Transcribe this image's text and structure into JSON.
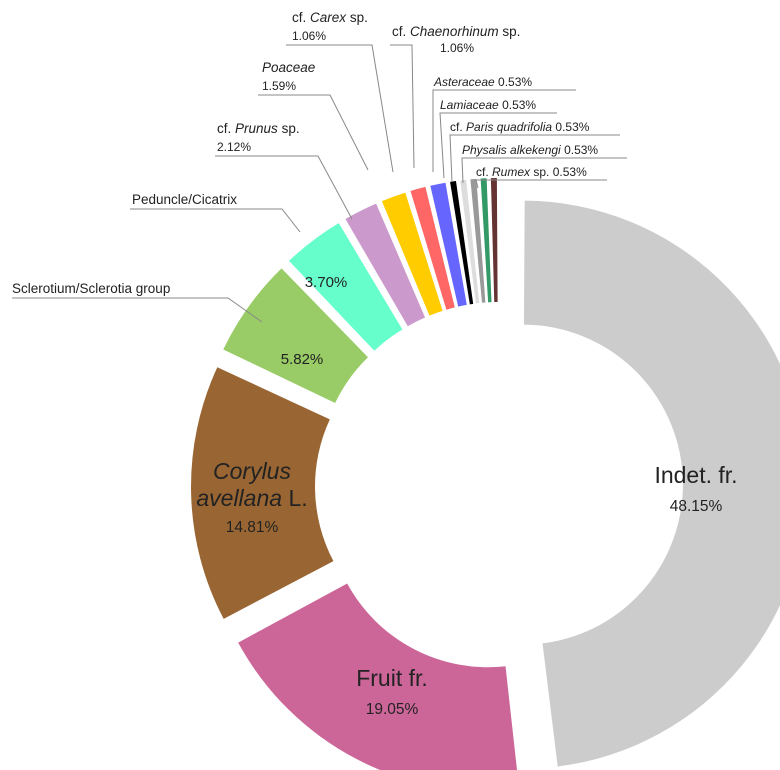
{
  "chart_data": {
    "type": "pie",
    "style": "donut",
    "slices": [
      {
        "label": "Indet. fr.",
        "value": 48.15,
        "display": "48.15%",
        "color": "#cccccc"
      },
      {
        "label": "Fruit fr.",
        "value": 19.05,
        "display": "19.05%",
        "color": "#cc6699"
      },
      {
        "label_parts": [
          "Corylus",
          "avellana",
          "L."
        ],
        "value": 14.81,
        "display": "14.81%",
        "color": "#996633"
      },
      {
        "label": "Sclerotium/Sclerotia group",
        "value": 5.82,
        "display": "5.82%",
        "color": "#99cc66"
      },
      {
        "label": "Peduncle/Cicatrix",
        "value": 3.7,
        "display": "3.70%",
        "color": "#66ffcc"
      },
      {
        "label_parts": [
          "cf.",
          "Prunus",
          "sp."
        ],
        "value": 2.12,
        "display": "2.12%",
        "color": "#cc99cc"
      },
      {
        "label": "Poaceae",
        "value": 1.59,
        "display": "1.59%",
        "color": "#ffcc00"
      },
      {
        "label_parts": [
          "cf.",
          "Carex",
          "sp."
        ],
        "value": 1.06,
        "display": "1.06%",
        "color": "#ff6666"
      },
      {
        "label_parts": [
          "cf.",
          "Chaenorhinum",
          "sp."
        ],
        "value": 1.06,
        "display": "1.06%",
        "color": "#6666ff"
      },
      {
        "label": "Asteraceae",
        "value": 0.53,
        "display": "0.53%",
        "color": "#000000"
      },
      {
        "label": "Lamiaceae",
        "value": 0.53,
        "display": "0.53%",
        "color": "#dddddd"
      },
      {
        "label_parts": [
          "cf.",
          "Paris quadrifolia"
        ],
        "value": 0.53,
        "display": "0.53%",
        "color": "#999999"
      },
      {
        "label": "Physalis alkekengi",
        "value": 0.53,
        "display": "0.53%",
        "color": "#339966"
      },
      {
        "label_parts": [
          "cf.",
          "Rumex",
          "sp."
        ],
        "value": 0.53,
        "display": "0.53%",
        "color": "#663333"
      }
    ]
  }
}
